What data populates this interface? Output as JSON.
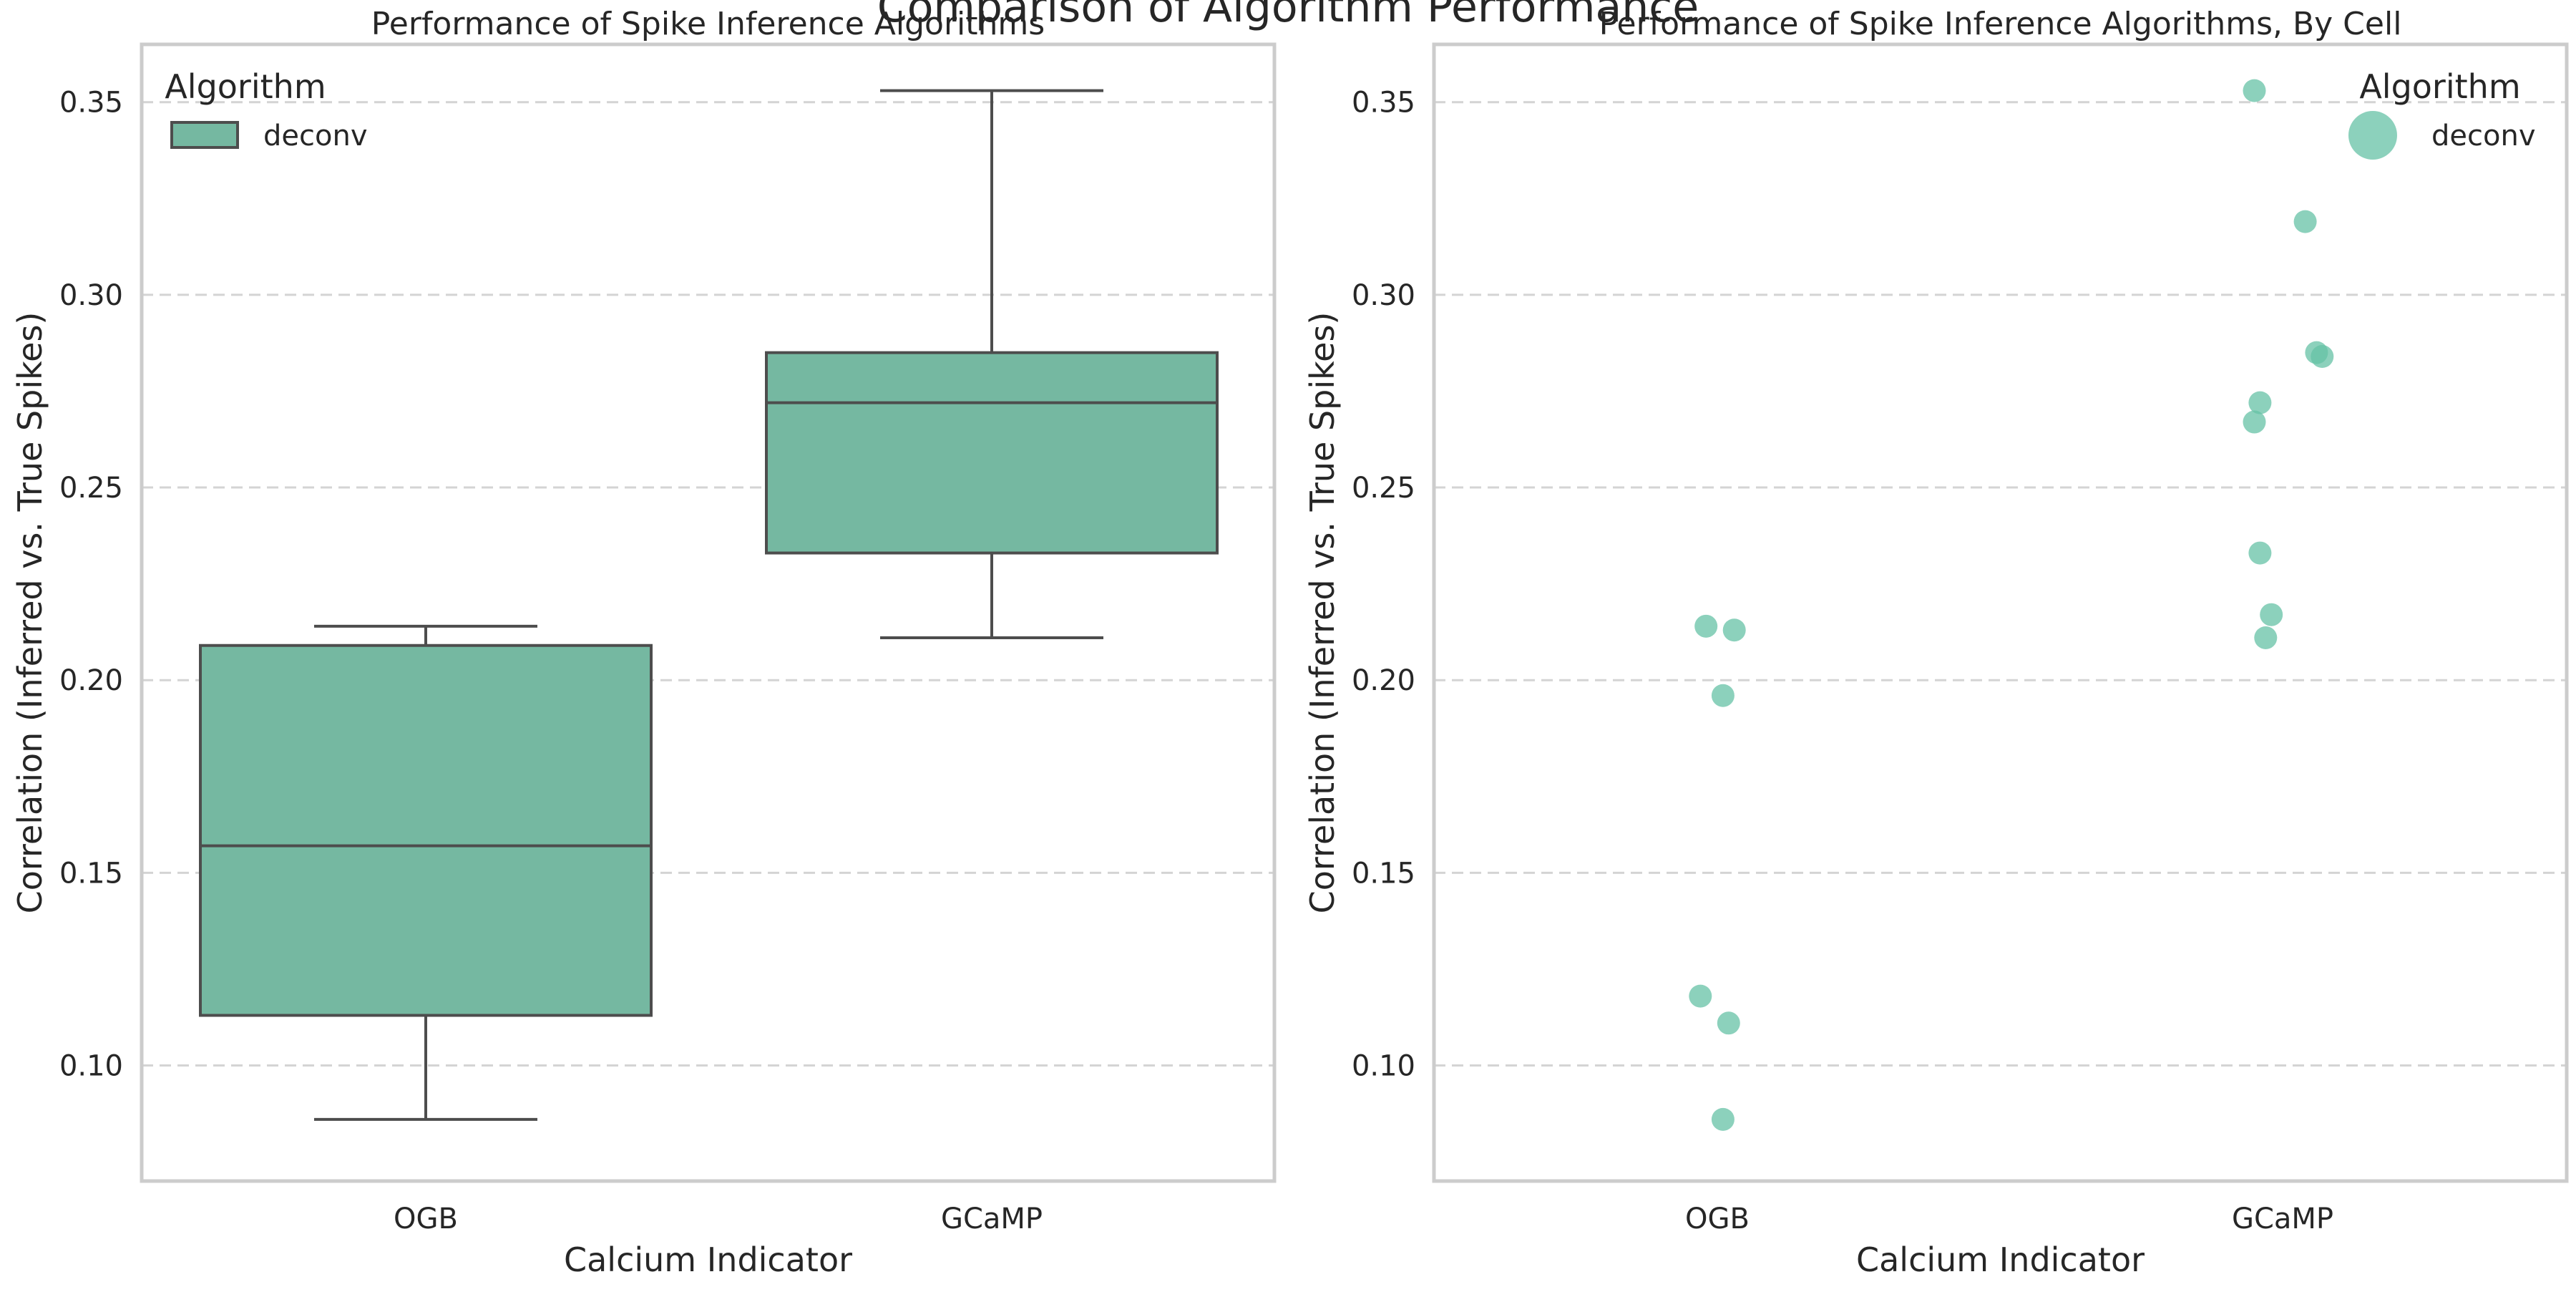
{
  "suptitle": "Comparison of Algorithm Performance",
  "colors": {
    "box_fill": "#75b8a1",
    "point_fill": "#66c2a5",
    "line": "#4d4d4d",
    "grid": "#d4d4d4",
    "spine": "#cccccc",
    "text": "#262626"
  },
  "chart_data": [
    {
      "type": "box",
      "title": "Performance of Spike Inference Algorithms",
      "xlabel": "Calcium Indicator",
      "ylabel": "Correlation (Inferred vs. True Spikes)",
      "categories": [
        "OGB",
        "GCaMP"
      ],
      "ylim": [
        0.07,
        0.365
      ],
      "yticks": [
        0.1,
        0.15,
        0.2,
        0.25,
        0.3,
        0.35
      ],
      "ytick_labels": [
        "0.10",
        "0.15",
        "0.20",
        "0.25",
        "0.30",
        "0.35"
      ],
      "grid": "horizontal dashed",
      "legend": {
        "title": "Algorithm",
        "position": "top-left",
        "entries": [
          "deconv"
        ]
      },
      "series": [
        {
          "name": "deconv",
          "boxes": [
            {
              "category": "OGB",
              "whisker_low": 0.086,
              "q1": 0.113,
              "median": 0.157,
              "q3": 0.209,
              "whisker_high": 0.214
            },
            {
              "category": "GCaMP",
              "whisker_low": 0.211,
              "q1": 0.233,
              "median": 0.272,
              "q3": 0.285,
              "whisker_high": 0.353
            }
          ]
        }
      ]
    },
    {
      "type": "scatter",
      "title": "Performance of Spike Inference Algorithms, By Cell",
      "xlabel": "Calcium Indicator",
      "ylabel": "Correlation (Inferred vs. True Spikes)",
      "categories": [
        "OGB",
        "GCaMP"
      ],
      "ylim": [
        0.07,
        0.365
      ],
      "yticks": [
        0.1,
        0.15,
        0.2,
        0.25,
        0.3,
        0.35
      ],
      "ytick_labels": [
        "0.10",
        "0.15",
        "0.20",
        "0.25",
        "0.30",
        "0.35"
      ],
      "grid": "horizontal dashed",
      "legend": {
        "title": "Algorithm",
        "position": "top-right",
        "entries": [
          "deconv"
        ]
      },
      "series": [
        {
          "name": "deconv",
          "points": [
            {
              "category": "OGB",
              "jitter": -0.02,
              "y": 0.214
            },
            {
              "category": "OGB",
              "jitter": 0.03,
              "y": 0.213
            },
            {
              "category": "OGB",
              "jitter": 0.01,
              "y": 0.196
            },
            {
              "category": "OGB",
              "jitter": -0.03,
              "y": 0.118
            },
            {
              "category": "OGB",
              "jitter": 0.02,
              "y": 0.111
            },
            {
              "category": "OGB",
              "jitter": 0.01,
              "y": 0.086
            },
            {
              "category": "GCaMP",
              "jitter": -0.05,
              "y": 0.353
            },
            {
              "category": "GCaMP",
              "jitter": 0.04,
              "y": 0.319
            },
            {
              "category": "GCaMP",
              "jitter": 0.06,
              "y": 0.285
            },
            {
              "category": "GCaMP",
              "jitter": 0.07,
              "y": 0.284
            },
            {
              "category": "GCaMP",
              "jitter": -0.04,
              "y": 0.272
            },
            {
              "category": "GCaMP",
              "jitter": -0.05,
              "y": 0.267
            },
            {
              "category": "GCaMP",
              "jitter": -0.04,
              "y": 0.233
            },
            {
              "category": "GCaMP",
              "jitter": -0.02,
              "y": 0.217
            },
            {
              "category": "GCaMP",
              "jitter": -0.03,
              "y": 0.211
            }
          ]
        }
      ]
    }
  ]
}
